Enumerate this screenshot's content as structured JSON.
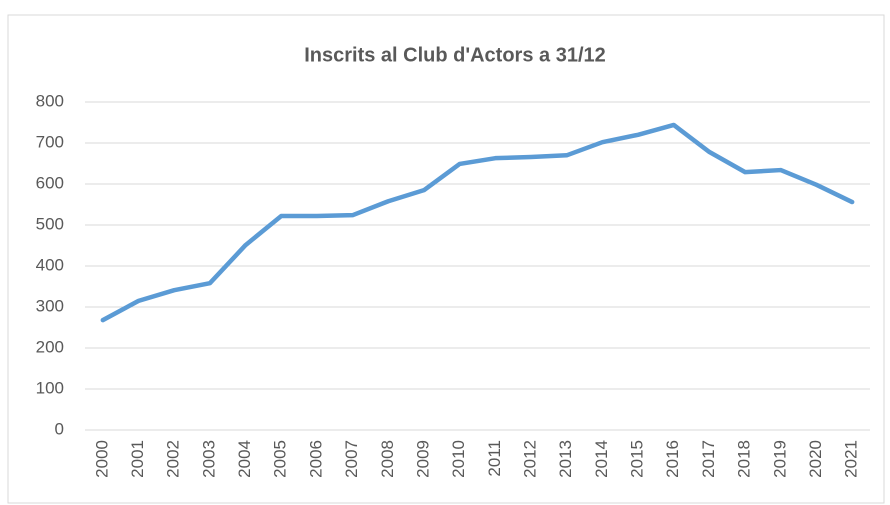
{
  "chart_data": {
    "type": "line",
    "title": "Inscrits al Club d'Actors a 31/12",
    "categories": [
      "2000",
      "2001",
      "2002",
      "2003",
      "2004",
      "2005",
      "2006",
      "2007",
      "2008",
      "2009",
      "2010",
      "2011",
      "2012",
      "2013",
      "2014",
      "2015",
      "2016",
      "2017",
      "2018",
      "2019",
      "2020",
      "2021"
    ],
    "series": [
      {
        "name": "Inscrits",
        "color": "#5b9bd5",
        "values": [
          268,
          315,
          341,
          358,
          451,
          522,
          522,
          524,
          558,
          585,
          649,
          663,
          666,
          670,
          702,
          720,
          744,
          678,
          629,
          634,
          598,
          556
        ]
      }
    ],
    "ylim": [
      0,
      800
    ],
    "yticks": [
      0,
      100,
      200,
      300,
      400,
      500,
      600,
      700,
      800
    ],
    "grid": true
  }
}
